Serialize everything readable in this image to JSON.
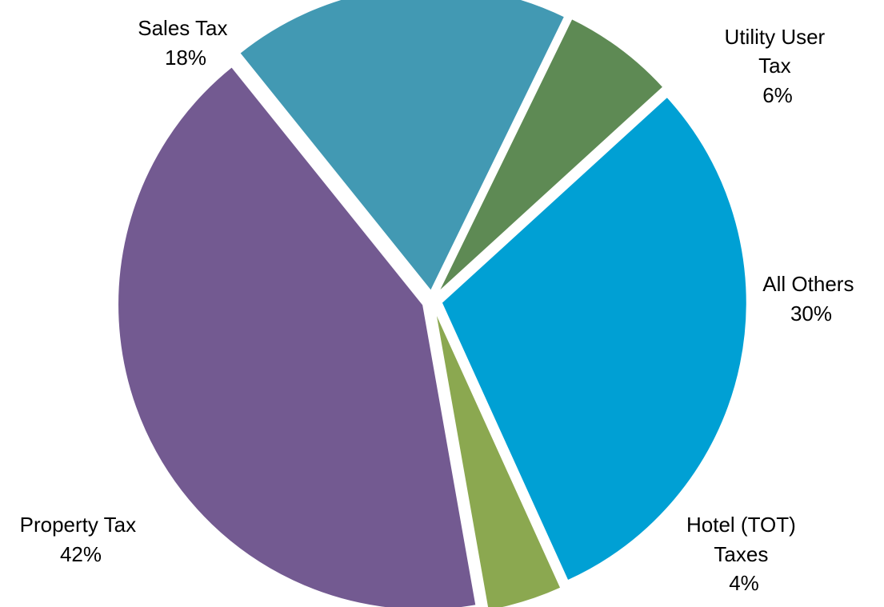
{
  "chart_data": {
    "type": "pie",
    "slices": [
      {
        "label": [
          "Utility User",
          "Tax"
        ],
        "value": 6,
        "value_label": "6%",
        "color": "#5e8a54"
      },
      {
        "label": [
          "All Others"
        ],
        "value": 30,
        "value_label": "30%",
        "color": "#00a0d4"
      },
      {
        "label": [
          "Hotel (TOT)",
          "Taxes"
        ],
        "value": 4,
        "value_label": "4%",
        "color": "#8ba850"
      },
      {
        "label": [
          "Property Tax"
        ],
        "value": 42,
        "value_label": "42%",
        "color": "#735a91"
      },
      {
        "label": [
          "Sales Tax"
        ],
        "value": 18,
        "value_label": "18%",
        "color": "#4299b3"
      }
    ],
    "legend": "none",
    "data_labels": "outside"
  }
}
